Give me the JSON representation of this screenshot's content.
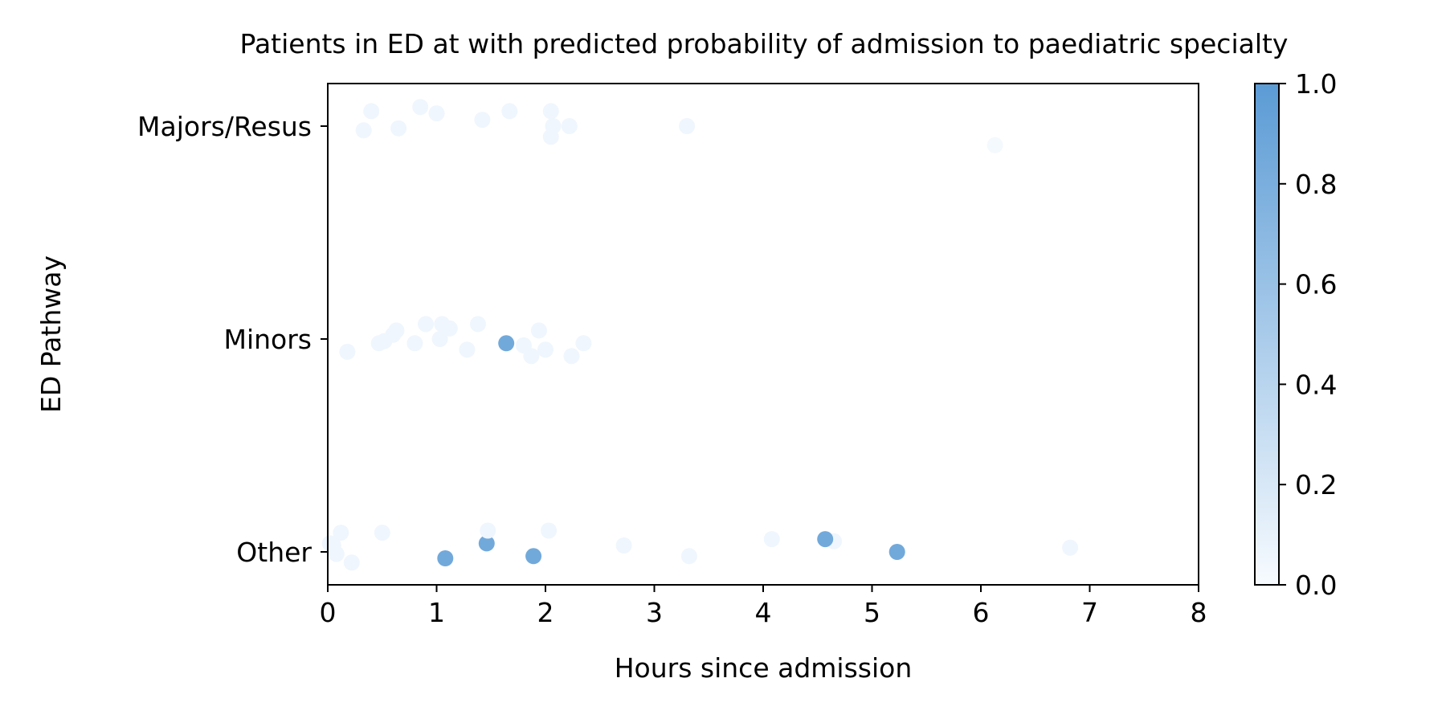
{
  "chart_data": {
    "type": "scatter",
    "title": "Patients in ED at with predicted probability of admission to paediatric specialty",
    "xlabel": "Hours since admission",
    "ylabel": "ED Pathway",
    "xlim": [
      0,
      8
    ],
    "x_ticks": [
      "0",
      "1",
      "2",
      "3",
      "4",
      "5",
      "6",
      "7",
      "8"
    ],
    "categories": [
      "Majors/Resus",
      "Minors",
      "Other"
    ],
    "grid": false,
    "colorbar": {
      "range": [
        0.0,
        1.0
      ],
      "ticks": [
        "0.0",
        "0.2",
        "0.4",
        "0.6",
        "0.8",
        "1.0"
      ],
      "color_low": "#f7fbff",
      "color_high": "#5b9bd5"
    },
    "points": [
      {
        "category": "Majors/Resus",
        "x": 0.33,
        "jitter": -0.02,
        "p": 0.05
      },
      {
        "category": "Majors/Resus",
        "x": 0.4,
        "jitter": 0.07,
        "p": 0.05
      },
      {
        "category": "Majors/Resus",
        "x": 0.65,
        "jitter": -0.01,
        "p": 0.05
      },
      {
        "category": "Majors/Resus",
        "x": 0.85,
        "jitter": 0.09,
        "p": 0.05
      },
      {
        "category": "Majors/Resus",
        "x": 1.0,
        "jitter": 0.06,
        "p": 0.05
      },
      {
        "category": "Majors/Resus",
        "x": 1.42,
        "jitter": 0.03,
        "p": 0.05
      },
      {
        "category": "Majors/Resus",
        "x": 1.67,
        "jitter": 0.07,
        "p": 0.05
      },
      {
        "category": "Majors/Resus",
        "x": 2.05,
        "jitter": 0.07,
        "p": 0.05
      },
      {
        "category": "Majors/Resus",
        "x": 2.07,
        "jitter": 0.0,
        "p": 0.05
      },
      {
        "category": "Majors/Resus",
        "x": 2.05,
        "jitter": -0.05,
        "p": 0.05
      },
      {
        "category": "Majors/Resus",
        "x": 2.22,
        "jitter": 0.0,
        "p": 0.05
      },
      {
        "category": "Majors/Resus",
        "x": 3.3,
        "jitter": 0.0,
        "p": 0.05
      },
      {
        "category": "Majors/Resus",
        "x": 6.13,
        "jitter": -0.09,
        "p": 0.02
      },
      {
        "category": "Minors",
        "x": 0.18,
        "jitter": -0.06,
        "p": 0.05
      },
      {
        "category": "Minors",
        "x": 0.47,
        "jitter": -0.02,
        "p": 0.05
      },
      {
        "category": "Minors",
        "x": 0.52,
        "jitter": -0.01,
        "p": 0.05
      },
      {
        "category": "Minors",
        "x": 0.6,
        "jitter": 0.02,
        "p": 0.05
      },
      {
        "category": "Minors",
        "x": 0.63,
        "jitter": 0.04,
        "p": 0.05
      },
      {
        "category": "Minors",
        "x": 0.8,
        "jitter": -0.02,
        "p": 0.05
      },
      {
        "category": "Minors",
        "x": 0.9,
        "jitter": 0.07,
        "p": 0.05
      },
      {
        "category": "Minors",
        "x": 1.03,
        "jitter": 0.0,
        "p": 0.05
      },
      {
        "category": "Minors",
        "x": 1.05,
        "jitter": 0.07,
        "p": 0.05
      },
      {
        "category": "Minors",
        "x": 1.12,
        "jitter": 0.05,
        "p": 0.05
      },
      {
        "category": "Minors",
        "x": 1.28,
        "jitter": -0.05,
        "p": 0.05
      },
      {
        "category": "Minors",
        "x": 1.38,
        "jitter": 0.07,
        "p": 0.05
      },
      {
        "category": "Minors",
        "x": 1.64,
        "jitter": -0.02,
        "p": 0.85
      },
      {
        "category": "Minors",
        "x": 1.8,
        "jitter": -0.03,
        "p": 0.05
      },
      {
        "category": "Minors",
        "x": 1.87,
        "jitter": -0.08,
        "p": 0.05
      },
      {
        "category": "Minors",
        "x": 1.94,
        "jitter": 0.04,
        "p": 0.05
      },
      {
        "category": "Minors",
        "x": 2.0,
        "jitter": -0.05,
        "p": 0.05
      },
      {
        "category": "Minors",
        "x": 2.24,
        "jitter": -0.08,
        "p": 0.05
      },
      {
        "category": "Minors",
        "x": 2.35,
        "jitter": -0.02,
        "p": 0.05
      },
      {
        "category": "Other",
        "x": 0.02,
        "jitter": 0.04,
        "p": 0.05
      },
      {
        "category": "Other",
        "x": 0.05,
        "jitter": 0.03,
        "p": 0.05
      },
      {
        "category": "Other",
        "x": 0.08,
        "jitter": -0.01,
        "p": 0.05
      },
      {
        "category": "Other",
        "x": 0.12,
        "jitter": 0.09,
        "p": 0.05
      },
      {
        "category": "Other",
        "x": 0.22,
        "jitter": -0.05,
        "p": 0.05
      },
      {
        "category": "Other",
        "x": 0.5,
        "jitter": 0.09,
        "p": 0.05
      },
      {
        "category": "Other",
        "x": 1.08,
        "jitter": -0.03,
        "p": 0.85
      },
      {
        "category": "Other",
        "x": 1.46,
        "jitter": 0.04,
        "p": 0.85
      },
      {
        "category": "Other",
        "x": 1.47,
        "jitter": 0.1,
        "p": 0.05
      },
      {
        "category": "Other",
        "x": 1.89,
        "jitter": -0.02,
        "p": 0.85
      },
      {
        "category": "Other",
        "x": 2.03,
        "jitter": 0.1,
        "p": 0.05
      },
      {
        "category": "Other",
        "x": 2.72,
        "jitter": 0.03,
        "p": 0.05
      },
      {
        "category": "Other",
        "x": 3.32,
        "jitter": -0.02,
        "p": 0.05
      },
      {
        "category": "Other",
        "x": 4.08,
        "jitter": 0.06,
        "p": 0.05
      },
      {
        "category": "Other",
        "x": 4.65,
        "jitter": 0.05,
        "p": 0.05
      },
      {
        "category": "Other",
        "x": 4.57,
        "jitter": 0.06,
        "p": 0.85
      },
      {
        "category": "Other",
        "x": 5.23,
        "jitter": 0.0,
        "p": 0.85
      },
      {
        "category": "Other",
        "x": 6.82,
        "jitter": 0.02,
        "p": 0.05
      }
    ]
  }
}
